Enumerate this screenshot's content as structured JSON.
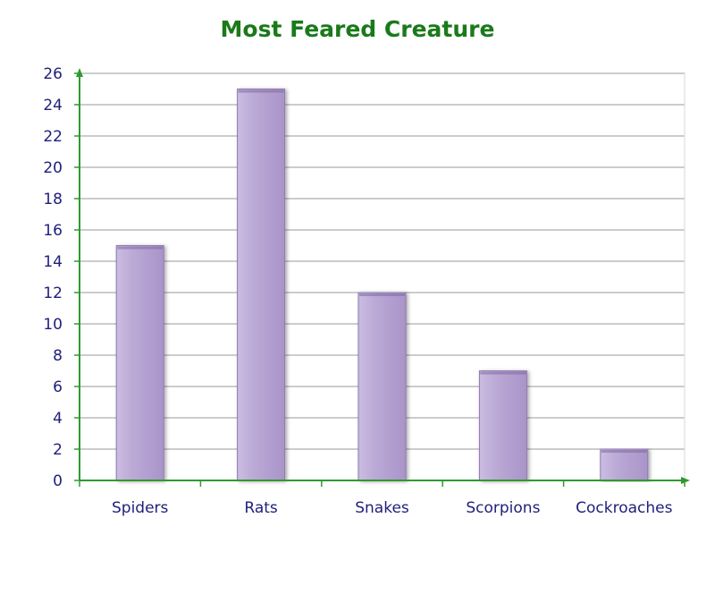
{
  "chart_data": {
    "type": "bar",
    "title": "Most Feared Creature",
    "categories": [
      "Spiders",
      "Rats",
      "Snakes",
      "Scorpions",
      "Cockroaches"
    ],
    "values": [
      15,
      25,
      12,
      7,
      2
    ],
    "xlabel": "",
    "ylabel": "",
    "ylim": [
      0,
      26
    ],
    "yticks": [
      0,
      2,
      4,
      6,
      8,
      10,
      12,
      14,
      16,
      18,
      20,
      22,
      24,
      26
    ],
    "grid": true,
    "legend": "none",
    "colors": {
      "bar": "#b8a6d4",
      "bar_edge": "#8e7ab0",
      "axis": "#2e9a2e",
      "grid": "#9a9a9a",
      "title": "#1a7a1a",
      "tick_text": "#1f1f7a"
    }
  }
}
